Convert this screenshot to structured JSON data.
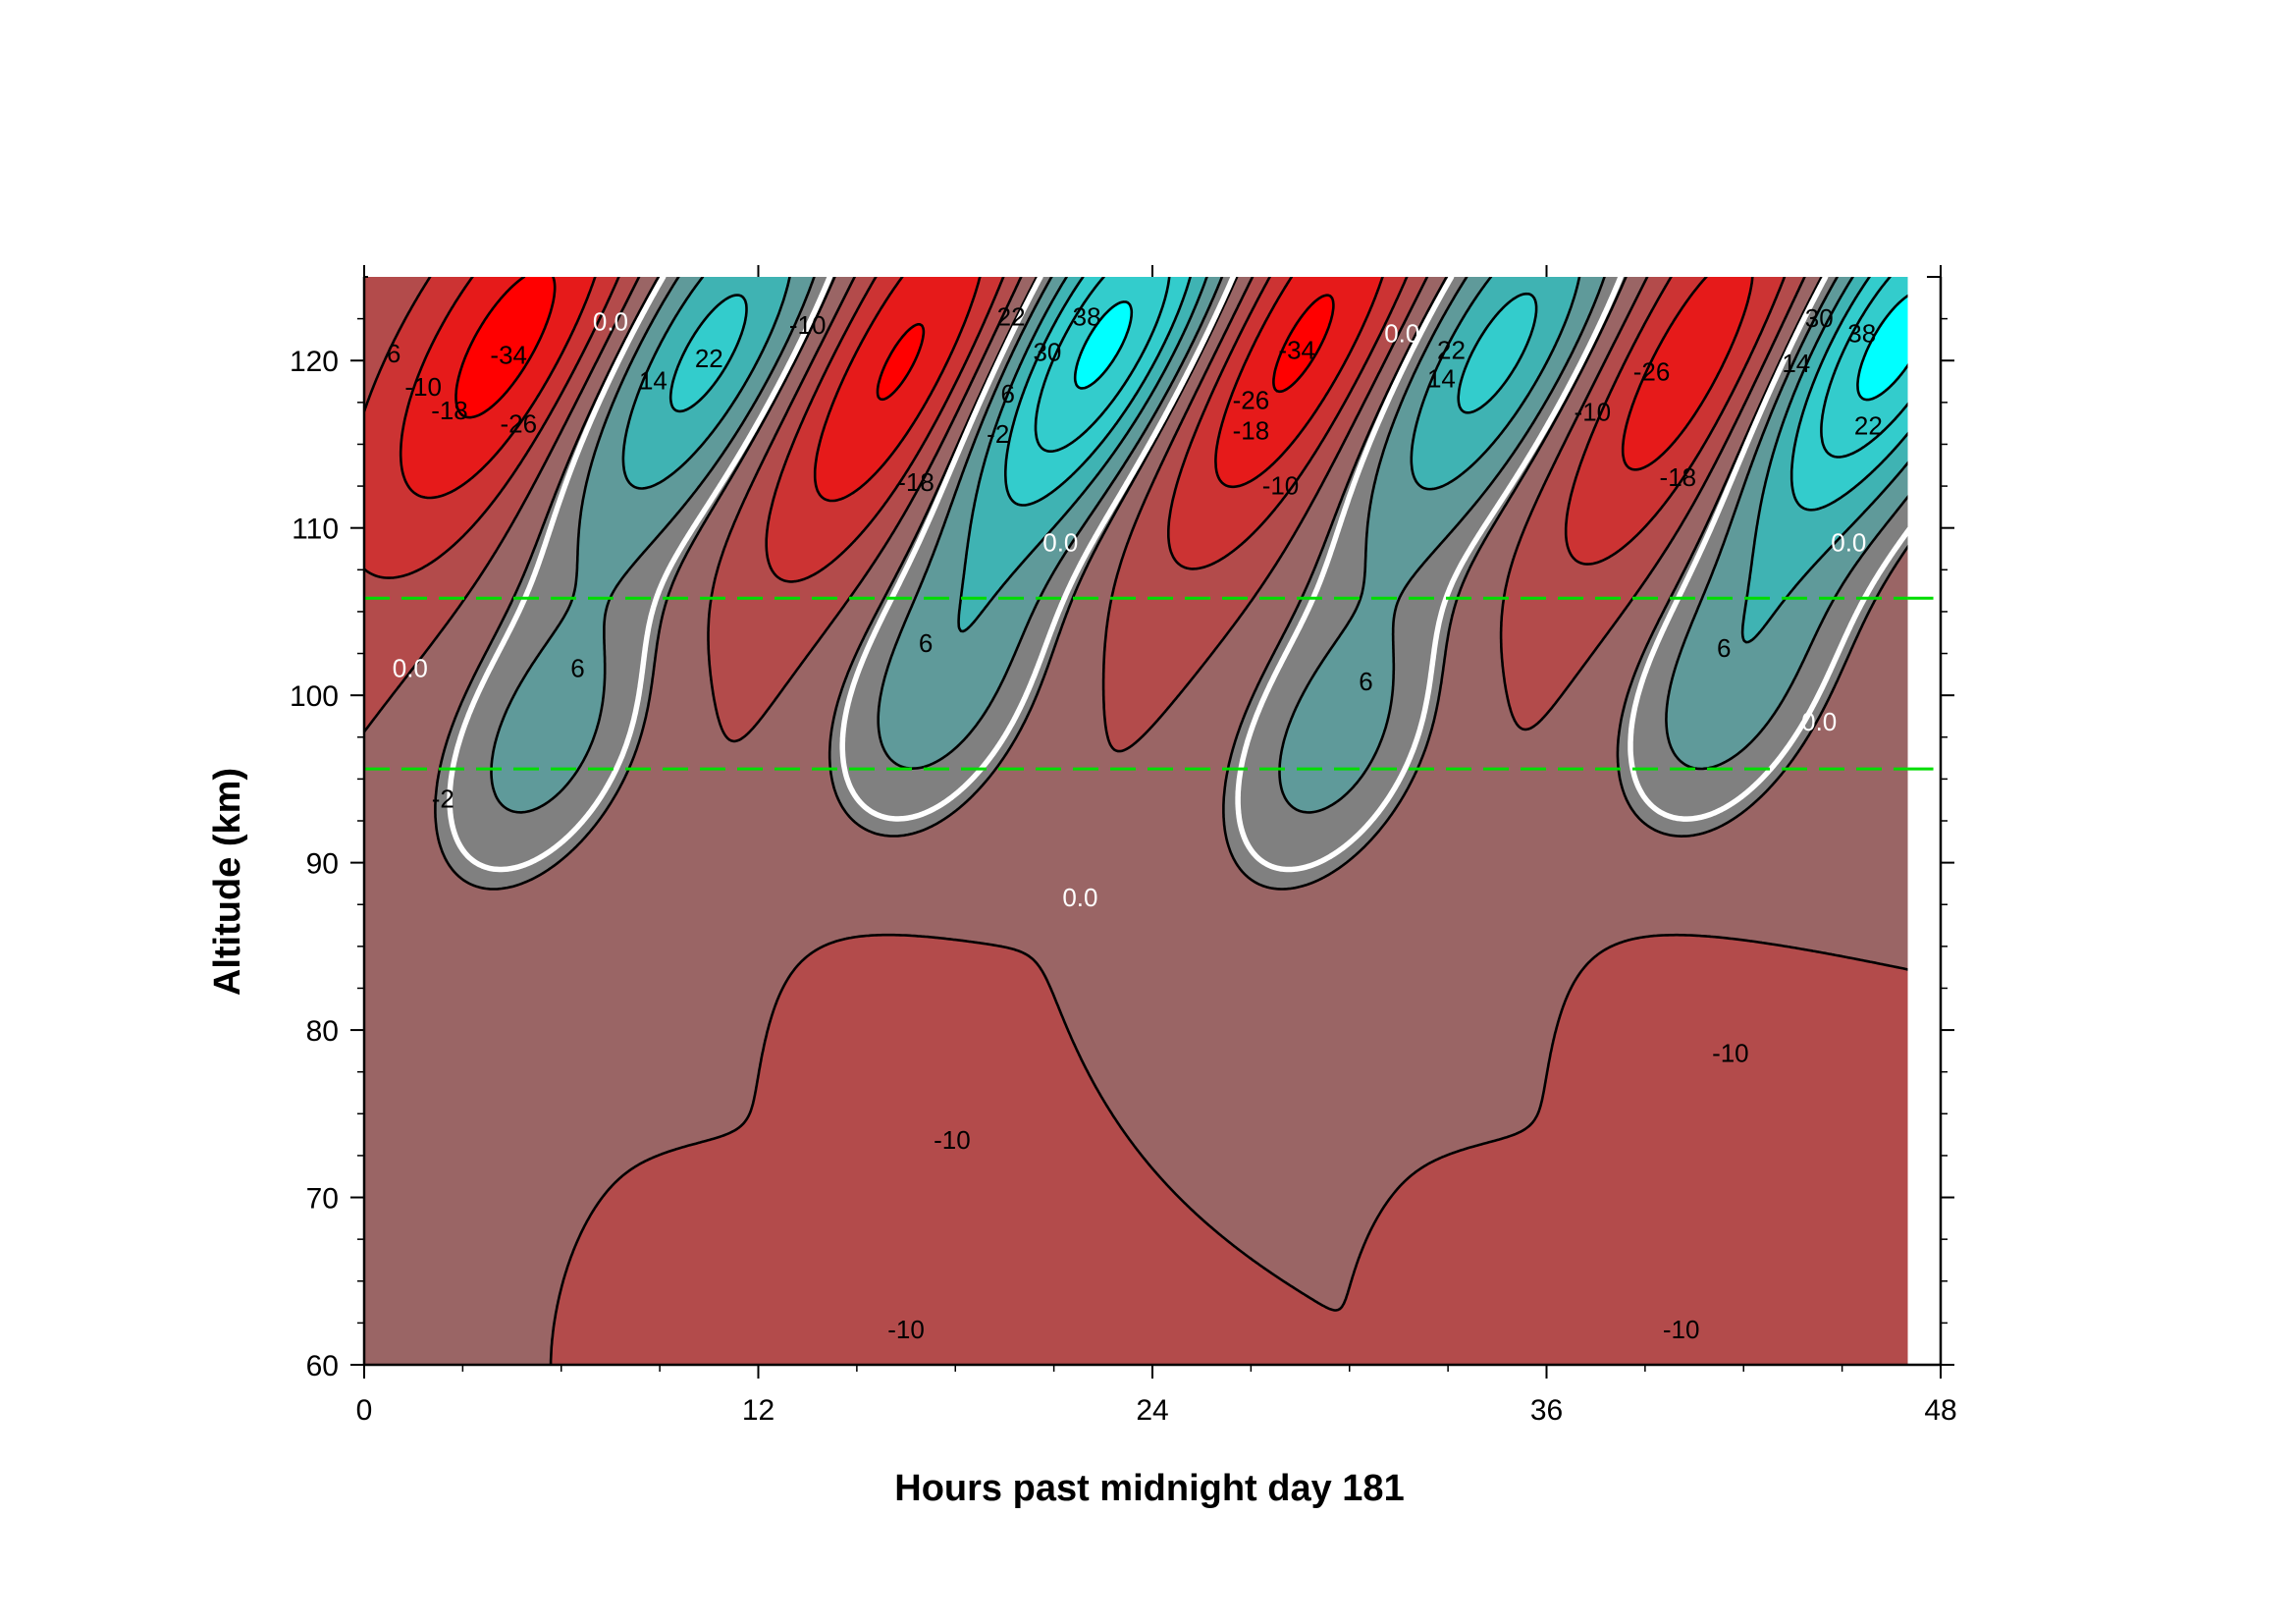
{
  "chart_data": {
    "type": "contour",
    "title": "",
    "xlabel": "Hours past midnight day 181",
    "ylabel": "Altitude (km)",
    "xlim": [
      0,
      48
    ],
    "ylim": [
      60,
      125
    ],
    "xticks": [
      0,
      12,
      24,
      36,
      48
    ],
    "yticks": [
      60,
      70,
      80,
      90,
      100,
      110,
      120
    ],
    "x_data_max": 47,
    "contour_interval": 8,
    "contour_levels": [
      -34,
      -26,
      -18,
      -10,
      -2,
      0,
      6,
      14,
      22,
      30,
      38
    ],
    "colors": {
      "background": "#9a6565",
      "gray_band": "#808080",
      "teal_1": "#5f9a9a",
      "teal_2": "#3fb3b3",
      "cyan_3": "#33cccc",
      "cyan_4": "#00ffff",
      "red_1": "#b34b4b",
      "red_2": "#cc3333",
      "red_3": "#e61a1a",
      "red_4": "#ff0000",
      "zero_line": "#ffffff",
      "reference_line": "#00dd00"
    },
    "reference_lines_km": [
      95.6,
      105.8
    ],
    "features": [
      {
        "kind": "positive",
        "label": "22",
        "x": 10.5,
        "y": 120.5,
        "peak": 26
      },
      {
        "kind": "negative",
        "label": "-34",
        "x": 4.5,
        "y": 121,
        "peak": -38
      },
      {
        "kind": "negative",
        "label": "-26",
        "x": 16.5,
        "y": 120,
        "peak": -38
      },
      {
        "kind": "positive",
        "label": "38",
        "x": 22.5,
        "y": 121,
        "peak": 42
      },
      {
        "kind": "negative",
        "label": "-34",
        "x": 28.5,
        "y": 121,
        "peak": -38
      },
      {
        "kind": "positive",
        "label": "22",
        "x": 34.5,
        "y": 120.5,
        "peak": 26
      },
      {
        "kind": "negative",
        "label": "-26",
        "x": 40.5,
        "y": 120,
        "peak": -34
      },
      {
        "kind": "positive",
        "label": "38",
        "x": 46.5,
        "y": 121,
        "peak": 42
      },
      {
        "kind": "positive",
        "label": "6",
        "x": 5.5,
        "y": 97,
        "peak": 9
      },
      {
        "kind": "positive",
        "label": "6",
        "x": 17.5,
        "y": 100,
        "peak": 9
      },
      {
        "kind": "positive",
        "label": "6",
        "x": 29.5,
        "y": 97,
        "peak": 9
      },
      {
        "kind": "positive",
        "label": "6",
        "x": 41.5,
        "y": 100,
        "peak": 9
      },
      {
        "kind": "negative",
        "label": "-10",
        "x": 16.5,
        "y": 80,
        "peak": -12
      },
      {
        "kind": "negative",
        "label": "-10",
        "x": 40.5,
        "y": 80,
        "peak": -12
      },
      {
        "kind": "negative",
        "label": "-10",
        "x": 16,
        "y": 62,
        "peak": -12
      },
      {
        "kind": "negative",
        "label": "-10",
        "x": 40,
        "y": 62,
        "peak": -12
      }
    ],
    "contour_labels": [
      {
        "text": "6",
        "x": 0.9,
        "y": 120.3
      },
      {
        "text": "-10",
        "x": 1.8,
        "y": 118.3
      },
      {
        "text": "-18",
        "x": 2.6,
        "y": 116.9
      },
      {
        "text": "-34",
        "x": 4.4,
        "y": 120.2
      },
      {
        "text": "-26",
        "x": 4.7,
        "y": 116.1
      },
      {
        "text": "0.0",
        "x": 7.5,
        "y": 122.2
      },
      {
        "text": "14",
        "x": 8.8,
        "y": 118.7
      },
      {
        "text": "22",
        "x": 10.5,
        "y": 120.0
      },
      {
        "text": "-10",
        "x": 13.5,
        "y": 122.0
      },
      {
        "text": "-18",
        "x": 16.8,
        "y": 112.6
      },
      {
        "text": "22",
        "x": 19.7,
        "y": 122.5
      },
      {
        "text": "30",
        "x": 20.8,
        "y": 120.4
      },
      {
        "text": "38",
        "x": 22.0,
        "y": 122.5
      },
      {
        "text": "6",
        "x": 19.6,
        "y": 117.9
      },
      {
        "text": "-2",
        "x": 19.3,
        "y": 115.5
      },
      {
        "text": "-34",
        "x": 28.4,
        "y": 120.5
      },
      {
        "text": "-26",
        "x": 27.0,
        "y": 117.5
      },
      {
        "text": "-18",
        "x": 27.0,
        "y": 115.7
      },
      {
        "text": "-10",
        "x": 27.9,
        "y": 112.4
      },
      {
        "text": "0.0",
        "x": 31.6,
        "y": 121.5
      },
      {
        "text": "22",
        "x": 33.1,
        "y": 120.5
      },
      {
        "text": "14",
        "x": 32.8,
        "y": 118.8
      },
      {
        "text": "-10",
        "x": 37.4,
        "y": 116.8
      },
      {
        "text": "-26",
        "x": 39.2,
        "y": 119.2
      },
      {
        "text": "-18",
        "x": 40.0,
        "y": 112.9
      },
      {
        "text": "14",
        "x": 43.6,
        "y": 119.7
      },
      {
        "text": "30",
        "x": 44.3,
        "y": 122.4
      },
      {
        "text": "38",
        "x": 45.6,
        "y": 121.5
      },
      {
        "text": "22",
        "x": 45.8,
        "y": 116.0
      },
      {
        "text": "0.0",
        "x": 21.2,
        "y": 109.0
      },
      {
        "text": "0.0",
        "x": 45.2,
        "y": 109.0
      },
      {
        "text": "0.0",
        "x": 1.4,
        "y": 101.5
      },
      {
        "text": "-2",
        "x": 2.4,
        "y": 93.7
      },
      {
        "text": "6",
        "x": 6.5,
        "y": 101.5
      },
      {
        "text": "6",
        "x": 17.1,
        "y": 103.0
      },
      {
        "text": "0.0",
        "x": 21.8,
        "y": 87.8
      },
      {
        "text": "6",
        "x": 30.5,
        "y": 100.7
      },
      {
        "text": "6",
        "x": 41.4,
        "y": 102.7
      },
      {
        "text": "0.0",
        "x": 44.3,
        "y": 98.3
      },
      {
        "text": "-10",
        "x": 17.9,
        "y": 73.3
      },
      {
        "text": "-10",
        "x": 41.6,
        "y": 78.5
      },
      {
        "text": "-10",
        "x": 16.5,
        "y": 62.0
      },
      {
        "text": "-10",
        "x": 40.1,
        "y": 62.0
      }
    ]
  }
}
